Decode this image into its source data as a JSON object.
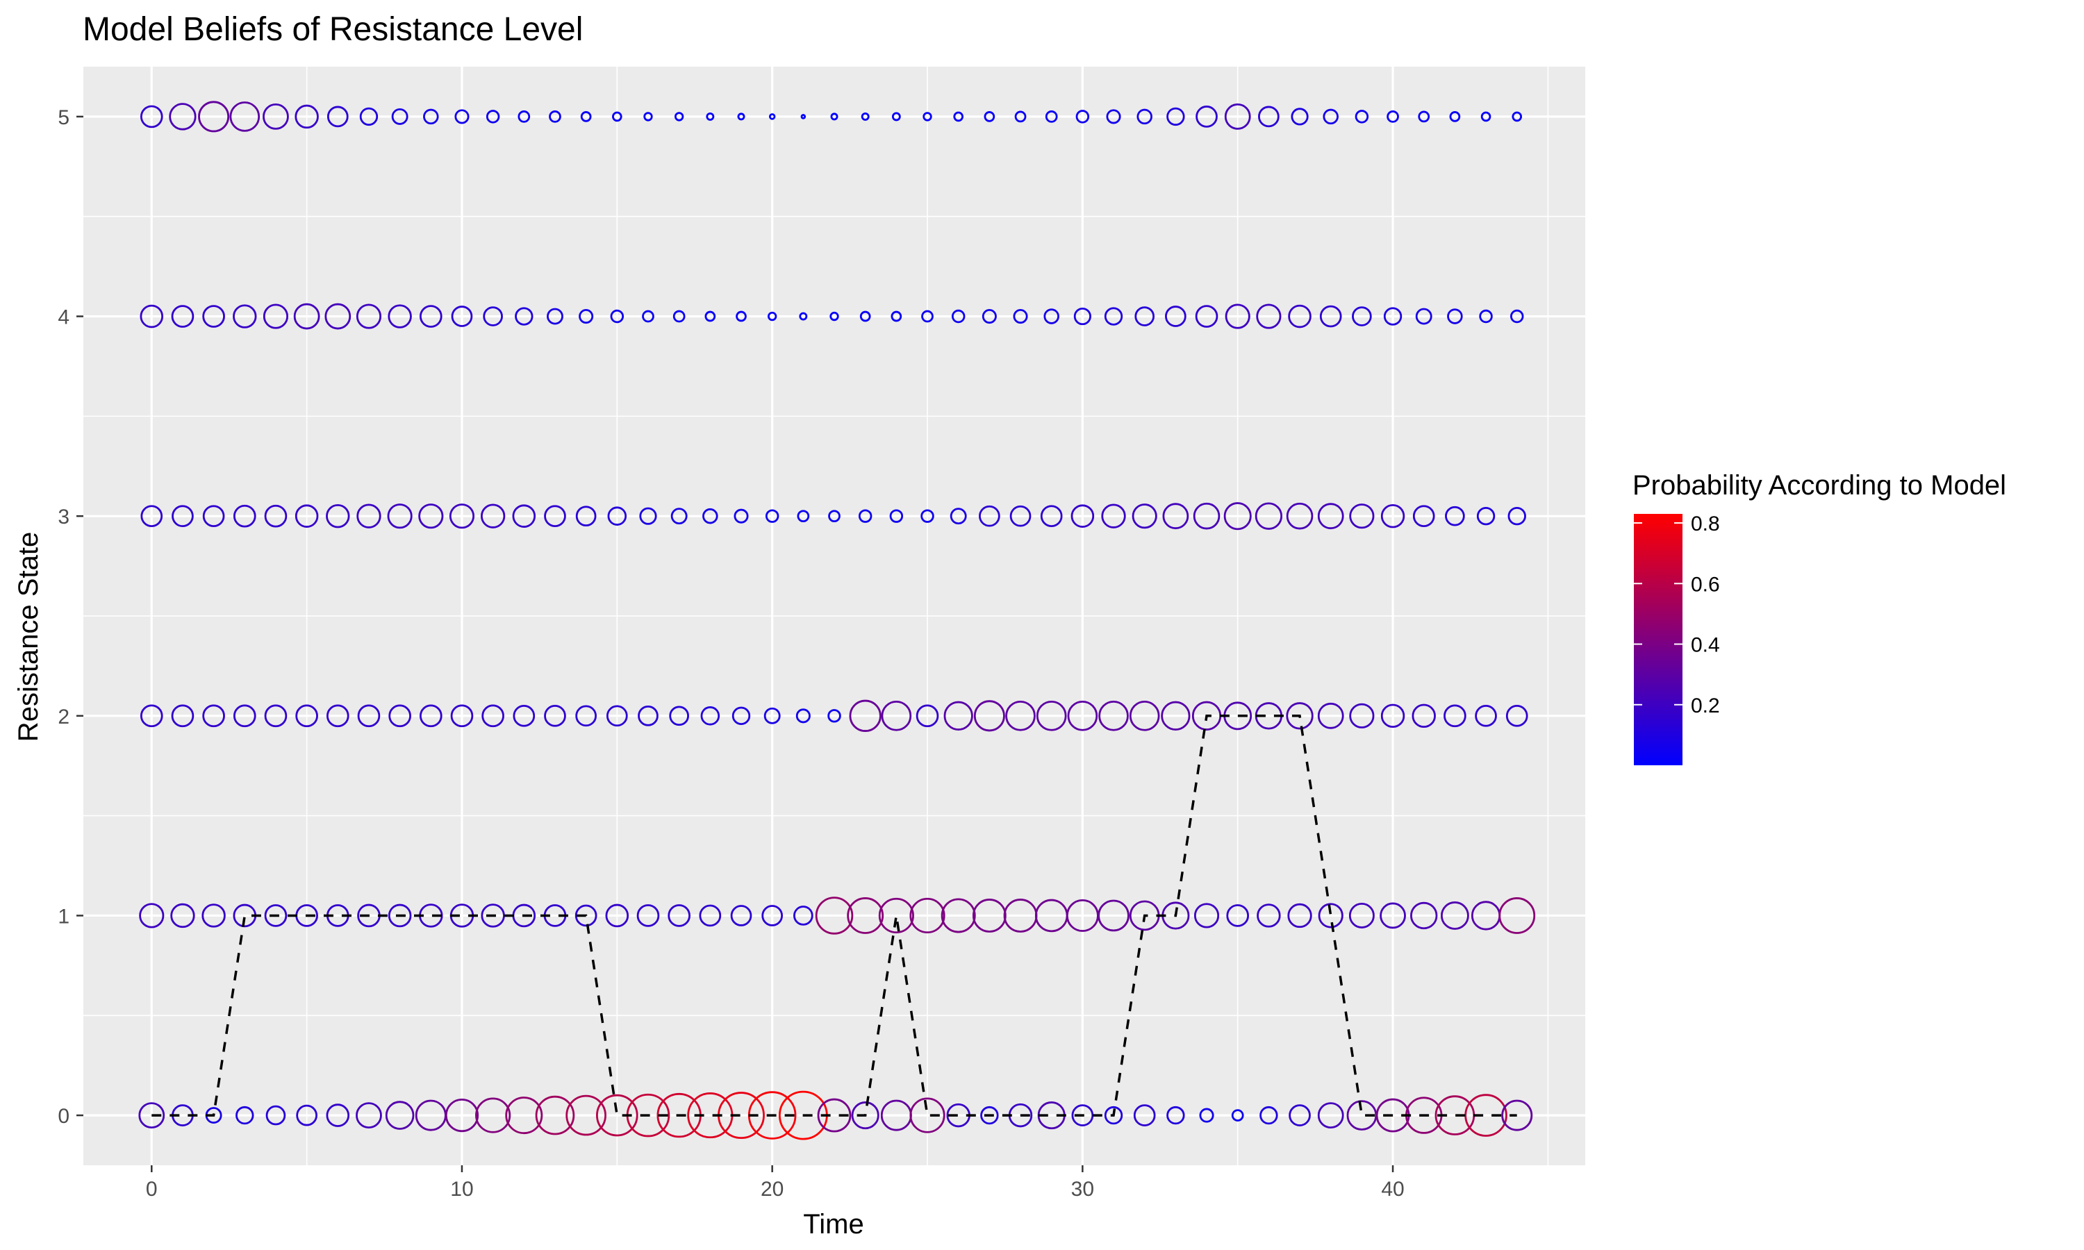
{
  "chart_data": {
    "type": "scatter",
    "title": "Model Beliefs of Resistance Level",
    "xlabel": "Time",
    "ylabel": "Resistance State",
    "xlim": [
      -2.2,
      46.2
    ],
    "ylim": [
      -0.25,
      5.25
    ],
    "x_ticks": [
      0,
      10,
      20,
      30,
      40
    ],
    "y_ticks": [
      0,
      1,
      2,
      3,
      4,
      5
    ],
    "grid": true,
    "legend": {
      "title": "Probability According to Model",
      "position": "right",
      "ticks": [
        0.2,
        0.4,
        0.6,
        0.8
      ],
      "range": [
        0.0,
        0.83
      ],
      "color_low": "#0000ff",
      "color_high": "#ff0000"
    },
    "panel_background": "#ebebeb",
    "time": [
      0,
      1,
      2,
      3,
      4,
      5,
      6,
      7,
      8,
      9,
      10,
      11,
      12,
      13,
      14,
      15,
      16,
      17,
      18,
      19,
      20,
      21,
      22,
      23,
      24,
      25,
      26,
      27,
      28,
      29,
      30,
      31,
      32,
      33,
      34,
      35,
      36,
      37,
      38,
      39,
      40,
      41,
      42,
      43,
      44
    ],
    "probabilities": {
      "0": [
        0.22,
        0.15,
        0.08,
        0.1,
        0.12,
        0.14,
        0.17,
        0.22,
        0.27,
        0.32,
        0.37,
        0.42,
        0.47,
        0.52,
        0.56,
        0.6,
        0.64,
        0.68,
        0.72,
        0.76,
        0.8,
        0.83,
        0.38,
        0.25,
        0.32,
        0.42,
        0.18,
        0.1,
        0.18,
        0.25,
        0.15,
        0.1,
        0.15,
        0.1,
        0.06,
        0.04,
        0.1,
        0.15,
        0.22,
        0.3,
        0.38,
        0.46,
        0.54,
        0.62,
        0.32
      ],
      "1": [
        0.2,
        0.19,
        0.18,
        0.17,
        0.16,
        0.16,
        0.16,
        0.17,
        0.17,
        0.18,
        0.18,
        0.18,
        0.17,
        0.16,
        0.15,
        0.17,
        0.16,
        0.16,
        0.15,
        0.14,
        0.14,
        0.12,
        0.48,
        0.45,
        0.42,
        0.42,
        0.4,
        0.38,
        0.38,
        0.36,
        0.35,
        0.33,
        0.3,
        0.25,
        0.2,
        0.16,
        0.18,
        0.19,
        0.2,
        0.21,
        0.22,
        0.24,
        0.26,
        0.28,
        0.45
      ],
      "2": [
        0.16,
        0.16,
        0.16,
        0.16,
        0.16,
        0.16,
        0.16,
        0.16,
        0.16,
        0.16,
        0.16,
        0.16,
        0.15,
        0.15,
        0.14,
        0.14,
        0.13,
        0.12,
        0.11,
        0.1,
        0.08,
        0.06,
        0.05,
        0.34,
        0.3,
        0.16,
        0.28,
        0.32,
        0.3,
        0.3,
        0.3,
        0.3,
        0.3,
        0.28,
        0.28,
        0.26,
        0.24,
        0.24,
        0.22,
        0.2,
        0.18,
        0.18,
        0.16,
        0.15,
        0.15
      ],
      "3": [
        0.15,
        0.15,
        0.15,
        0.16,
        0.16,
        0.17,
        0.18,
        0.19,
        0.2,
        0.2,
        0.2,
        0.19,
        0.17,
        0.15,
        0.13,
        0.11,
        0.09,
        0.08,
        0.07,
        0.06,
        0.05,
        0.04,
        0.04,
        0.05,
        0.05,
        0.05,
        0.08,
        0.14,
        0.14,
        0.15,
        0.17,
        0.19,
        0.2,
        0.22,
        0.23,
        0.25,
        0.24,
        0.23,
        0.22,
        0.2,
        0.18,
        0.15,
        0.12,
        0.1,
        0.1
      ],
      "4": [
        0.17,
        0.16,
        0.16,
        0.18,
        0.2,
        0.22,
        0.22,
        0.2,
        0.18,
        0.16,
        0.14,
        0.12,
        0.1,
        0.08,
        0.06,
        0.05,
        0.04,
        0.04,
        0.03,
        0.03,
        0.02,
        0.015,
        0.02,
        0.03,
        0.03,
        0.04,
        0.05,
        0.06,
        0.06,
        0.07,
        0.09,
        0.1,
        0.12,
        0.14,
        0.16,
        0.2,
        0.2,
        0.17,
        0.15,
        0.12,
        0.1,
        0.08,
        0.07,
        0.05,
        0.05
      ],
      "5": [
        0.16,
        0.24,
        0.32,
        0.3,
        0.22,
        0.18,
        0.14,
        0.1,
        0.08,
        0.07,
        0.06,
        0.05,
        0.04,
        0.04,
        0.03,
        0.025,
        0.02,
        0.02,
        0.015,
        0.012,
        0.008,
        0.004,
        0.012,
        0.015,
        0.018,
        0.02,
        0.025,
        0.03,
        0.035,
        0.04,
        0.05,
        0.06,
        0.07,
        0.1,
        0.15,
        0.22,
        0.14,
        0.09,
        0.07,
        0.05,
        0.04,
        0.035,
        0.03,
        0.025,
        0.025
      ]
    },
    "true_state": [
      0,
      0,
      0,
      1,
      1,
      1,
      1,
      1,
      1,
      1,
      1,
      1,
      1,
      1,
      1,
      0,
      0,
      0,
      0,
      0,
      0,
      0,
      0,
      0,
      1,
      0,
      0,
      0,
      0,
      0,
      0,
      0,
      1,
      1,
      2,
      2,
      2,
      2,
      1,
      0,
      0,
      0,
      0,
      0,
      0
    ]
  }
}
